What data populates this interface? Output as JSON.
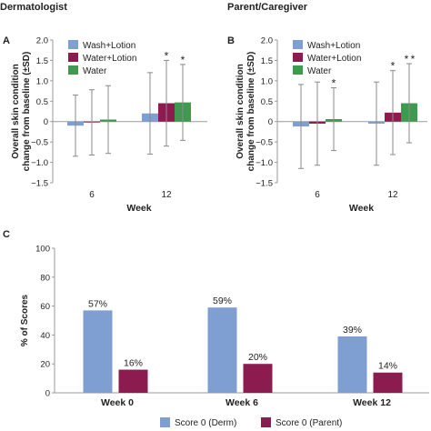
{
  "headers": {
    "left": "Dermatologist",
    "right": "Parent/Caregiver"
  },
  "chart_data": [
    {
      "panel": "A",
      "type": "bar",
      "xlabel": "Week",
      "ylabel": [
        "Overall skin condition",
        "change from baseline (±SD)"
      ],
      "ylim": [
        -1.5,
        2.0
      ],
      "yticks": [
        "2.0",
        "1.5",
        "1.0",
        "0.5",
        "0",
        "−0.5",
        "−1.0",
        "−1.5"
      ],
      "yticks_values": [
        2.0,
        1.5,
        1.0,
        0.5,
        0,
        -0.5,
        -1.0,
        -1.5
      ],
      "categories": [
        "6",
        "12"
      ],
      "legend_position": "top-left",
      "series": [
        {
          "name": "Wash+Lotion",
          "color": "#7f9fd3",
          "values": [
            -0.1,
            0.2
          ],
          "sd": [
            0.75,
            1.0
          ],
          "sig": [
            false,
            false
          ]
        },
        {
          "name": "Water+Lotion",
          "color": "#8c1c4f",
          "values": [
            -0.02,
            0.45
          ],
          "sd": [
            0.8,
            1.05
          ],
          "sig": [
            false,
            true
          ]
        },
        {
          "name": "Water",
          "color": "#3f9a4f",
          "values": [
            0.05,
            0.47
          ],
          "sd": [
            0.83,
            0.93
          ],
          "sig": [
            false,
            true
          ]
        }
      ],
      "sig_marker": "*",
      "sig_color": "#7f9fd3"
    },
    {
      "panel": "B",
      "type": "bar",
      "xlabel": "Week",
      "ylabel": [
        "Overall skin condition",
        "change from baseline (±SD)"
      ],
      "ylim": [
        -1.5,
        2.0
      ],
      "yticks": [
        "2.0",
        "1.5",
        "1.0",
        "0.5",
        "0",
        "−0.5",
        "−1.0",
        "−1.5"
      ],
      "yticks_values": [
        2.0,
        1.5,
        1.0,
        0.5,
        0,
        -0.5,
        -1.0,
        -1.5
      ],
      "categories": [
        "6",
        "12"
      ],
      "legend_position": "top-left",
      "series": [
        {
          "name": "Wash+Lotion",
          "color": "#7f9fd3",
          "values": [
            -0.12,
            -0.05
          ],
          "sd": [
            1.03,
            1.02
          ],
          "sig": [
            false,
            false
          ]
        },
        {
          "name": "Water+Lotion",
          "color": "#8c1c4f",
          "values": [
            -0.05,
            0.22
          ],
          "sd": [
            1.02,
            1.03
          ],
          "sig": [
            false,
            true
          ]
        },
        {
          "name": "Water",
          "color": "#3f9a4f",
          "values": [
            0.06,
            0.45
          ],
          "sd": [
            0.77,
            0.97
          ],
          "sig": [
            true,
            true
          ]
        }
      ],
      "sig_marker": "*",
      "sig_extra": {
        "series_index": 2,
        "category_index": 1,
        "color": "#8c1c4f"
      },
      "sig_color": "#7f9fd3"
    },
    {
      "panel": "C",
      "type": "bar",
      "ylabel": "% of Scores",
      "ylim": [
        0,
        100
      ],
      "yticks": [
        "100",
        "80",
        "60",
        "40",
        "20",
        "0"
      ],
      "yticks_values": [
        100,
        80,
        60,
        40,
        20,
        0
      ],
      "categories": [
        "Week 0",
        "Week 6",
        "Week 12"
      ],
      "legend_position": "bottom",
      "series": [
        {
          "name": "Score 0 (Derm)",
          "color": "#7f9fd3",
          "values": [
            57,
            59,
            39
          ],
          "labels": [
            "57%",
            "59%",
            "39%"
          ]
        },
        {
          "name": "Score 0 (Parent)",
          "color": "#8c1c4f",
          "values": [
            16,
            20,
            14
          ],
          "labels": [
            "16%",
            "20%",
            "14%"
          ]
        }
      ]
    }
  ]
}
